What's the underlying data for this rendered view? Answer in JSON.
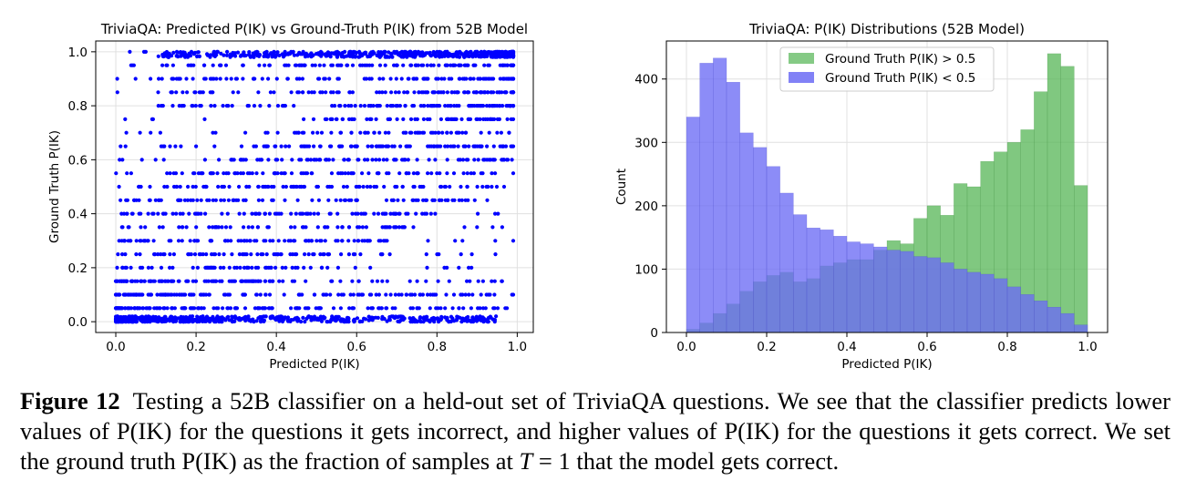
{
  "chart_data": [
    {
      "type": "scatter",
      "title": "TriviaQA: Predicted P(IK) vs Ground-Truth P(IK) from 52B Model",
      "xlabel": "Predicted P(IK)",
      "ylabel": "Ground Truth P(IK)",
      "xlim": [
        -0.05,
        1.04
      ],
      "ylim": [
        -0.04,
        1.04
      ],
      "xticks": [
        "0.0",
        "0.2",
        "0.4",
        "0.6",
        "0.8",
        "1.0"
      ],
      "yticks": [
        "0.0",
        "0.2",
        "0.4",
        "0.6",
        "0.8",
        "1.0"
      ],
      "grid": true,
      "color": "#0000ff",
      "point_count": 3000,
      "description": "Ground truth values fall on a discrete grid (0, 0.05, ..., 1.0); points concentrate near (0,0) and (1,1)"
    },
    {
      "type": "bar",
      "subtype": "histogram",
      "title": "TriviaQA: P(IK) Distributions (52B Model)",
      "xlabel": "Predicted P(IK)",
      "ylabel": "Count",
      "xlim": [
        -0.05,
        1.05
      ],
      "ylim": [
        0,
        460
      ],
      "xticks": [
        "0.0",
        "0.2",
        "0.4",
        "0.6",
        "0.8",
        "1.0"
      ],
      "yticks": [
        "0",
        "100",
        "200",
        "300",
        "400"
      ],
      "grid": true,
      "legend_position": "top-center",
      "bin_edges": [
        0.0,
        0.0333,
        0.0667,
        0.1,
        0.1333,
        0.1667,
        0.2,
        0.2333,
        0.2667,
        0.3,
        0.3333,
        0.3667,
        0.4,
        0.4333,
        0.4667,
        0.5,
        0.5333,
        0.5667,
        0.6,
        0.6333,
        0.6667,
        0.7,
        0.7333,
        0.7667,
        0.8,
        0.8333,
        0.8667,
        0.9,
        0.9333,
        0.9667,
        1.0
      ],
      "series": [
        {
          "name": "Ground Truth P(IK) > 0.5",
          "color": "#5cb85c",
          "values": [
            5,
            15,
            30,
            45,
            65,
            80,
            90,
            95,
            80,
            85,
            105,
            110,
            115,
            115,
            130,
            145,
            140,
            180,
            200,
            185,
            235,
            230,
            270,
            285,
            300,
            320,
            380,
            440,
            420,
            232
          ]
        },
        {
          "name": "Ground Truth P(IK) < 0.5",
          "color": "#6b6bf5",
          "values": [
            340,
            425,
            433,
            395,
            315,
            292,
            262,
            220,
            186,
            165,
            162,
            152,
            143,
            140,
            135,
            130,
            128,
            120,
            118,
            110,
            100,
            95,
            92,
            85,
            72,
            60,
            50,
            40,
            30,
            12
          ]
        }
      ]
    }
  ],
  "caption": {
    "label": "Figure 12",
    "text_before_math": "Testing a 52B classifier on a held-out set of TriviaQA questions.  We see that the classifier predicts lower values of P(IK) for the questions it gets incorrect, and higher values of P(IK) for the questions it gets correct. We set the ground truth P(IK) as the fraction of samples at ",
    "math_var": "T",
    "math_rest": " = 1",
    "text_after_math": " that the model gets correct."
  }
}
